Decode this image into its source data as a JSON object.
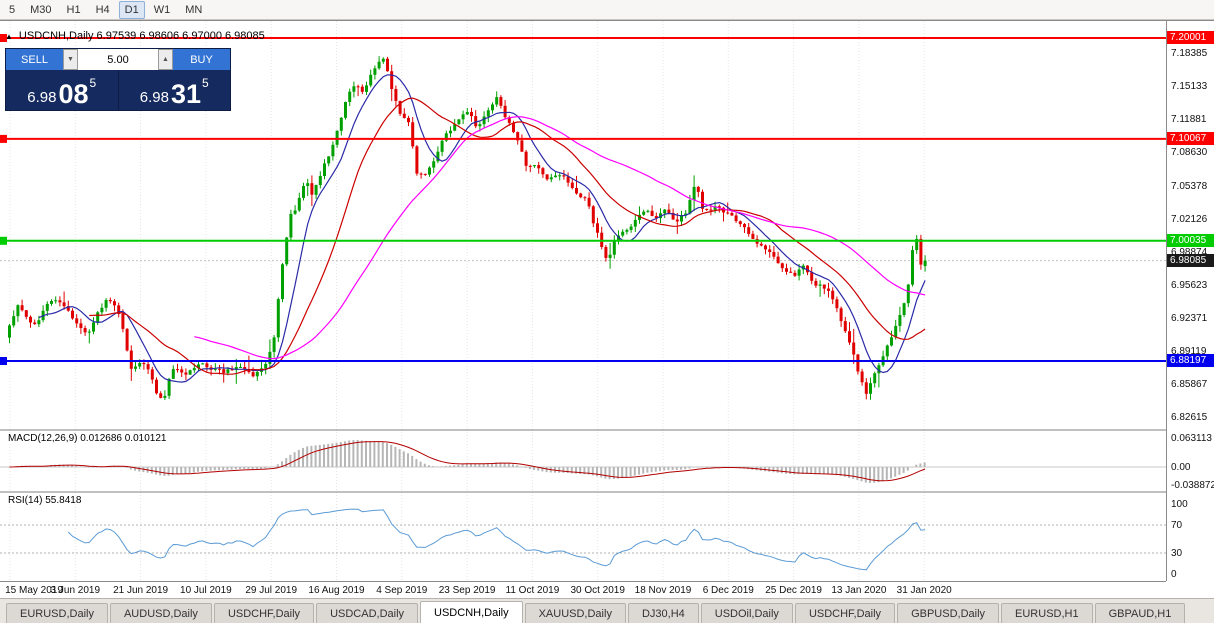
{
  "toolbar": {
    "timeframes": [
      "5",
      "M30",
      "H1",
      "H4",
      "D1",
      "W1",
      "MN"
    ],
    "active": "D1"
  },
  "chart": {
    "ohlc_line": "USDCNH,Daily 6.97539 6.98606 6.97000 6.98085"
  },
  "trade_panel": {
    "sell_label": "SELL",
    "buy_label": "BUY",
    "volume": "5.00",
    "sell_price_prefix": "6.98",
    "sell_price_big": "08",
    "sell_price_sup": "5",
    "buy_price_prefix": "6.98",
    "buy_price_big": "31",
    "buy_price_sup": "5"
  },
  "price_axis": [
    "7.18385",
    "7.15133",
    "7.11881",
    "7.08630",
    "7.05378",
    "7.02126",
    "6.98874",
    "6.95623",
    "6.92371",
    "6.89119",
    "6.85867",
    "6.82615"
  ],
  "current_price": "6.98085",
  "macd": {
    "label": "MACD(12,26,9) 0.012686 0.010121",
    "axis": [
      "0.063113",
      "0.00",
      "-0.038872"
    ]
  },
  "rsi": {
    "label": "RSI(14) 55.8418",
    "axis": [
      "100",
      "70",
      "30",
      "0"
    ]
  },
  "dates": [
    "15 May 2019",
    "3 Jun 2019",
    "21 Jun 2019",
    "10 Jul 2019",
    "29 Jul 2019",
    "16 Aug 2019",
    "4 Sep 2019",
    "23 Sep 2019",
    "11 Oct 2019",
    "30 Oct 2019",
    "18 Nov 2019",
    "6 Dec 2019",
    "25 Dec 2019",
    "13 Jan 2020",
    "31 Jan 2020"
  ],
  "tabs": {
    "active_index": 4,
    "items": [
      "EURUSD,Daily",
      "AUDUSD,Daily",
      "USDCHF,Daily",
      "USDCAD,Daily",
      "USDCNH,Daily",
      "XAUUSD,Daily",
      "DJ30,H4",
      "USDOil,Daily",
      "USDCHF,Daily",
      "GBPUSD,Daily",
      "EURUSD,H1",
      "GBPAUD,H1"
    ]
  },
  "chart_data": {
    "type": "candlestick",
    "title": "USDCNH,Daily",
    "last_ohlc": {
      "open": 6.97539,
      "high": 6.98606,
      "low": 6.97,
      "close": 6.98085
    },
    "ylim": [
      6.814,
      7.2167
    ],
    "levels": [
      {
        "price": 7.20001,
        "color": "#ff0000",
        "label": "7.20001"
      },
      {
        "price": 7.10067,
        "color": "#ff0000",
        "label": "7.10067"
      },
      {
        "price": 7.00035,
        "color": "#00cc00",
        "label": "7.00035"
      },
      {
        "price": 6.88197,
        "color": "#0000ee",
        "label": "6.88197"
      }
    ],
    "price_path": [
      [
        8,
        6.905
      ],
      [
        22,
        6.938
      ],
      [
        36,
        6.916
      ],
      [
        56,
        6.946
      ],
      [
        74,
        6.928
      ],
      [
        90,
        6.906
      ],
      [
        108,
        6.944
      ],
      [
        122,
        6.93
      ],
      [
        134,
        6.872
      ],
      [
        148,
        6.882
      ],
      [
        160,
        6.85
      ],
      [
        166,
        6.842
      ],
      [
        174,
        6.876
      ],
      [
        186,
        6.868
      ],
      [
        200,
        6.88
      ],
      [
        214,
        6.874
      ],
      [
        228,
        6.872
      ],
      [
        242,
        6.878
      ],
      [
        256,
        6.869
      ],
      [
        268,
        6.878
      ],
      [
        276,
        6.898
      ],
      [
        284,
        6.968
      ],
      [
        292,
        7.022
      ],
      [
        300,
        7.035
      ],
      [
        308,
        7.06
      ],
      [
        316,
        7.045
      ],
      [
        326,
        7.075
      ],
      [
        336,
        7.095
      ],
      [
        346,
        7.13
      ],
      [
        356,
        7.155
      ],
      [
        366,
        7.148
      ],
      [
        376,
        7.168
      ],
      [
        386,
        7.182
      ],
      [
        394,
        7.15
      ],
      [
        402,
        7.125
      ],
      [
        412,
        7.115
      ],
      [
        420,
        7.062
      ],
      [
        430,
        7.068
      ],
      [
        440,
        7.088
      ],
      [
        450,
        7.108
      ],
      [
        460,
        7.118
      ],
      [
        470,
        7.128
      ],
      [
        480,
        7.112
      ],
      [
        490,
        7.128
      ],
      [
        500,
        7.142
      ],
      [
        510,
        7.118
      ],
      [
        520,
        7.098
      ],
      [
        530,
        7.072
      ],
      [
        540,
        7.076
      ],
      [
        550,
        7.062
      ],
      [
        560,
        7.068
      ],
      [
        570,
        7.058
      ],
      [
        580,
        7.048
      ],
      [
        590,
        7.038
      ],
      [
        600,
        7.008
      ],
      [
        610,
        6.978
      ],
      [
        618,
        7.002
      ],
      [
        628,
        7.012
      ],
      [
        638,
        7.02
      ],
      [
        648,
        7.03
      ],
      [
        658,
        7.024
      ],
      [
        668,
        7.03
      ],
      [
        678,
        7.02
      ],
      [
        688,
        7.026
      ],
      [
        698,
        7.058
      ],
      [
        706,
        7.03
      ],
      [
        716,
        7.034
      ],
      [
        726,
        7.028
      ],
      [
        736,
        7.022
      ],
      [
        746,
        7.016
      ],
      [
        756,
        7.0
      ],
      [
        766,
        6.994
      ],
      [
        776,
        6.984
      ],
      [
        786,
        6.974
      ],
      [
        796,
        6.966
      ],
      [
        806,
        6.976
      ],
      [
        816,
        6.96
      ],
      [
        826,
        6.954
      ],
      [
        836,
        6.944
      ],
      [
        846,
        6.918
      ],
      [
        856,
        6.888
      ],
      [
        864,
        6.862
      ],
      [
        870,
        6.85
      ],
      [
        878,
        6.872
      ],
      [
        886,
        6.888
      ],
      [
        894,
        6.906
      ],
      [
        902,
        6.924
      ],
      [
        910,
        6.95
      ],
      [
        915,
        6.988
      ],
      [
        918,
        7.014
      ],
      [
        921,
        6.99
      ],
      [
        924,
        6.976
      ]
    ],
    "indicators": {
      "macd": {
        "params": "12,26,9",
        "main": 0.012686,
        "signal": 0.010121,
        "scale_max": 0.063113,
        "scale_min": -0.038872
      },
      "rsi": {
        "period": 14,
        "value": 55.8418,
        "levels": [
          70,
          30
        ]
      }
    },
    "moving_averages": [
      {
        "period": 8,
        "color": "#2a2aa8"
      },
      {
        "period": 20,
        "color": "#cc0000"
      },
      {
        "period": 45,
        "color": "#ff00ff"
      }
    ]
  }
}
